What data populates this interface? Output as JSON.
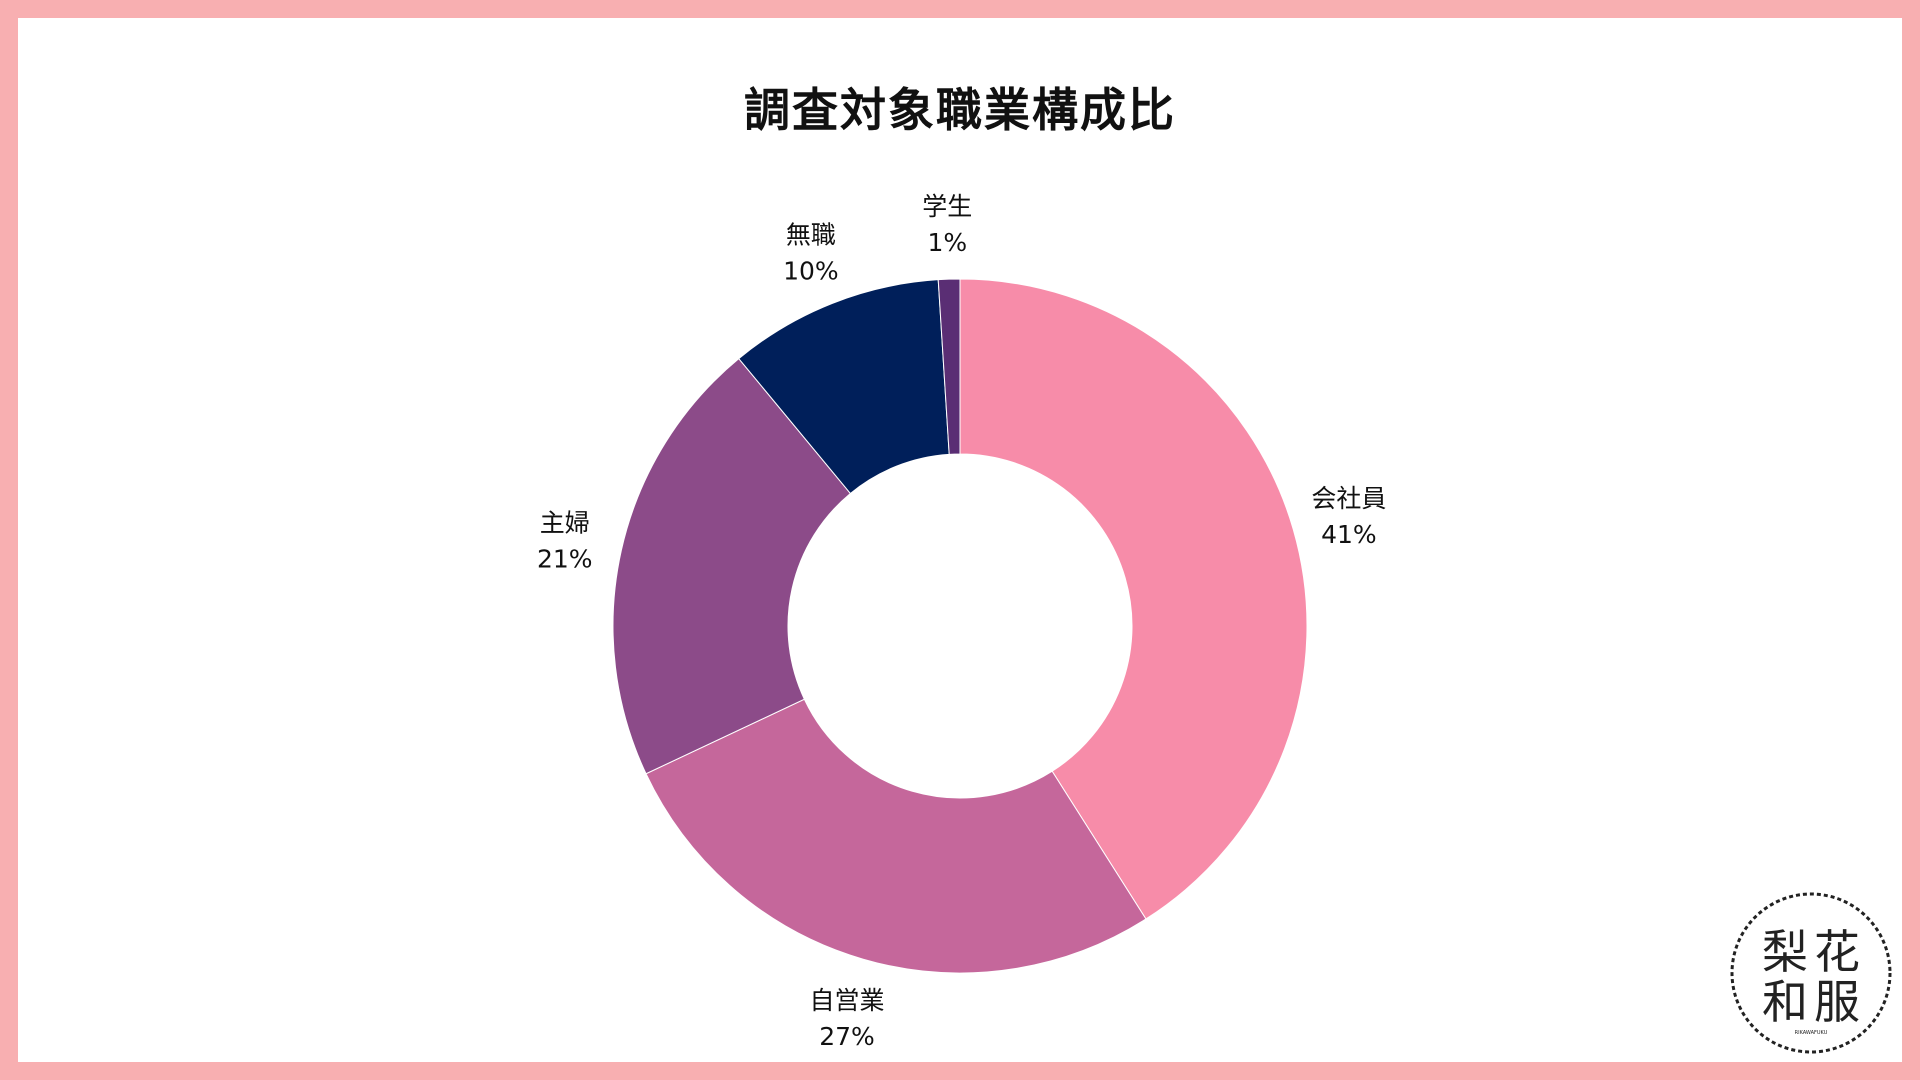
{
  "chart_data": {
    "type": "pie",
    "title": "調査対象職業構成比",
    "donut": true,
    "slices": [
      {
        "label": "会社員",
        "value": 41,
        "value_label": "41%",
        "color": "#f78ca9"
      },
      {
        "label": "自営業",
        "value": 27,
        "value_label": "27%",
        "color": "#c5679b"
      },
      {
        "label": "主婦",
        "value": 21,
        "value_label": "21%",
        "color": "#8c4b89"
      },
      {
        "label": "無職",
        "value": 10,
        "value_label": "10%",
        "color": "#001f5a"
      },
      {
        "label": "学生",
        "value": 1,
        "value_label": "1%",
        "color": "#5a2e74"
      }
    ]
  },
  "logo": {
    "text": [
      "梨",
      "花",
      "和",
      "服"
    ],
    "subtext": "RIKAWAFUKU"
  },
  "colors": {
    "frame": "#f8afb1",
    "background": "#ffffff"
  }
}
